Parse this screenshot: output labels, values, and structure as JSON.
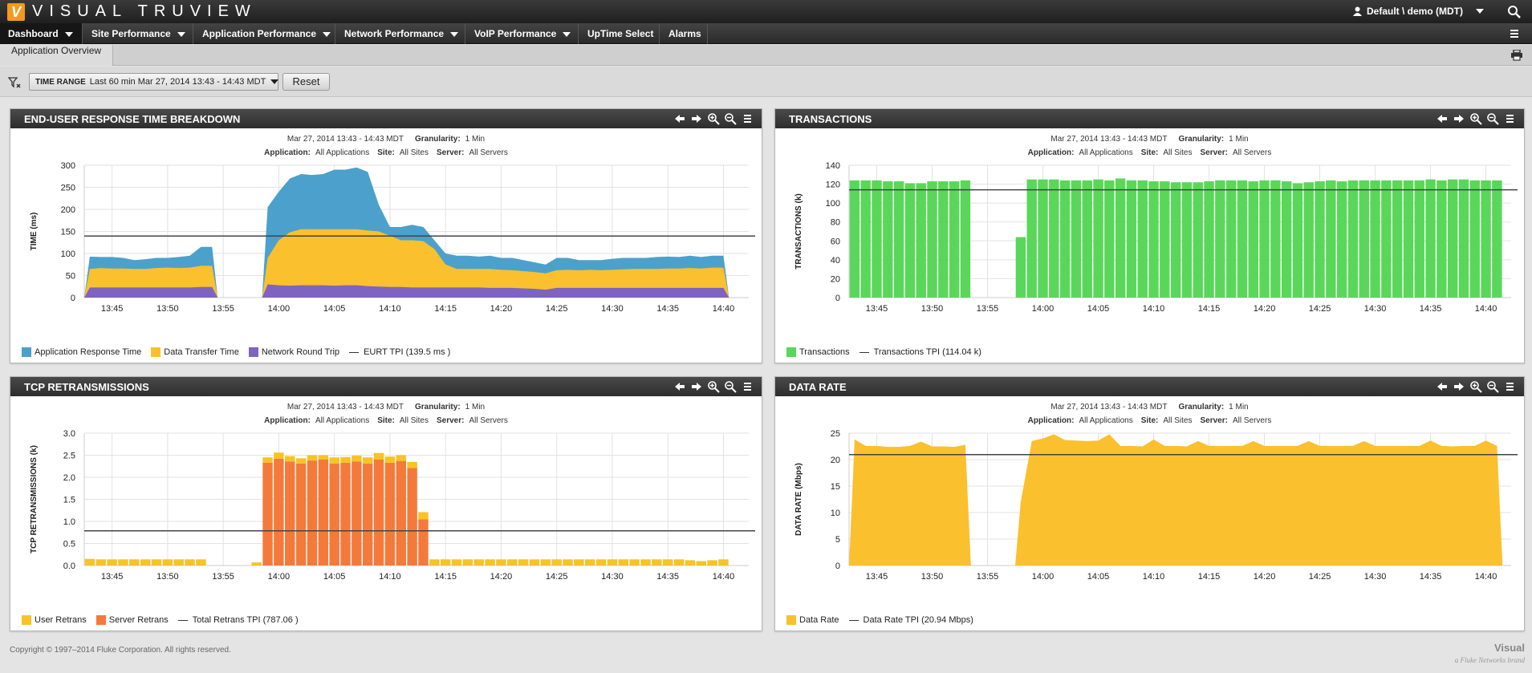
{
  "app": {
    "logo_letter": "V",
    "title": "VISUAL TRUVIEW",
    "user": "Default \\ demo (MDT)"
  },
  "nav": {
    "items": [
      {
        "label": "Dashboard",
        "dropdown": true,
        "active": true
      },
      {
        "label": "Site Performance",
        "dropdown": true
      },
      {
        "label": "Application Performance",
        "dropdown": true
      },
      {
        "label": "Network Performance",
        "dropdown": true
      },
      {
        "label": "VoIP Performance",
        "dropdown": true
      },
      {
        "label": "UpTime Select",
        "dropdown": false
      },
      {
        "label": "Alarms",
        "dropdown": false
      }
    ]
  },
  "breadcrumb": "Application Overview",
  "filter": {
    "time_range_label": "TIME RANGE",
    "time_range_value": "Last 60 min Mar 27, 2014 13:43 - 14:43 MDT",
    "reset_label": "Reset"
  },
  "meta_common": {
    "range": "Mar 27, 2014 13:43 - 14:43 MDT",
    "granularity_label": "Granularity:",
    "granularity": "1 Min",
    "application_label": "Application:",
    "application": "All Applications",
    "site_label": "Site:",
    "site": "All Sites",
    "server_label": "Server:",
    "server": "All Servers"
  },
  "colors": {
    "app_response": "#4ba1cb",
    "data_transfer": "#fbc02d",
    "network_round_trip": "#7e64c0",
    "transactions": "#5ad75a",
    "user_retrans": "#f7c325",
    "server_retrans": "#f47a3c",
    "data_rate": "#fbc02d",
    "threshold": "#444444"
  },
  "panels": {
    "eurt": {
      "title": "END-USER RESPONSE TIME BREAKDOWN"
    },
    "transactions": {
      "title": "TRANSACTIONS"
    },
    "tcp": {
      "title": "TCP RETRANSMISSIONS"
    },
    "datarate": {
      "title": "DATA RATE"
    }
  },
  "chart_data": [
    {
      "id": "eurt",
      "type": "area",
      "ylabel": "TIME (ms)",
      "ylim": [
        0,
        300
      ],
      "yticks": [
        "0",
        "50",
        "100",
        "150",
        "200",
        "250",
        "300"
      ],
      "xticks": [
        "13:45",
        "13:50",
        "13:55",
        "14:00",
        "14:05",
        "14:10",
        "14:15",
        "14:20",
        "14:25",
        "14:30",
        "14:35",
        "14:40"
      ],
      "x_start_min": 43,
      "threshold": 139.5,
      "series": [
        {
          "name": "Application Response Time",
          "values": [
            93,
            92,
            92,
            90,
            85,
            87,
            90,
            90,
            92,
            95,
            115,
            115,
            null,
            null,
            null,
            null,
            205,
            240,
            270,
            280,
            278,
            280,
            290,
            290,
            295,
            285,
            210,
            160,
            160,
            165,
            160,
            130,
            100,
            95,
            95,
            93,
            95,
            90,
            90,
            85,
            80,
            75,
            90,
            90,
            85,
            85,
            85,
            88,
            90,
            90,
            90,
            92,
            93,
            92,
            95,
            92,
            95,
            95
          ]
        },
        {
          "name": "Data Transfer Time",
          "values": [
            65,
            67,
            66,
            66,
            65,
            65,
            67,
            68,
            67,
            68,
            72,
            72,
            null,
            null,
            null,
            null,
            90,
            130,
            148,
            155,
            155,
            155,
            155,
            155,
            155,
            152,
            150,
            140,
            130,
            130,
            128,
            110,
            75,
            65,
            65,
            65,
            65,
            63,
            62,
            60,
            58,
            55,
            62,
            63,
            62,
            63,
            62,
            63,
            64,
            65,
            65,
            65,
            66,
            66,
            67,
            66,
            68,
            68
          ]
        },
        {
          "name": "Network Round Trip",
          "values": [
            23,
            23,
            23,
            23,
            23,
            23,
            23,
            23,
            23,
            23,
            24,
            24,
            null,
            null,
            null,
            null,
            30,
            28,
            27,
            28,
            28,
            28,
            27,
            28,
            28,
            26,
            25,
            24,
            24,
            23,
            23,
            23,
            23,
            23,
            23,
            23,
            22,
            22,
            22,
            21,
            20,
            18,
            22,
            22,
            22,
            22,
            22,
            22,
            22,
            22,
            22,
            22,
            22,
            22,
            22,
            22,
            22,
            22
          ]
        }
      ],
      "legend": [
        "Application Response Time",
        "Data Transfer Time",
        "Network Round Trip",
        "EURT TPI (139.5 ms )"
      ]
    },
    {
      "id": "transactions",
      "type": "bar",
      "ylabel": "TRANSACTIONS (k)",
      "ylim": [
        0,
        140
      ],
      "yticks": [
        "0",
        "20",
        "40",
        "60",
        "80",
        "100",
        "120",
        "140"
      ],
      "xticks": [
        "13:45",
        "13:50",
        "13:55",
        "14:00",
        "14:05",
        "14:10",
        "14:15",
        "14:20",
        "14:25",
        "14:30",
        "14:35",
        "14:40"
      ],
      "x_start_min": 43,
      "threshold": 114.04,
      "series": [
        {
          "name": "Transactions",
          "values": [
            124,
            124,
            124,
            123,
            123,
            121,
            121,
            123,
            123,
            123,
            124,
            null,
            null,
            null,
            null,
            64,
            125,
            125,
            125,
            124,
            124,
            124,
            125,
            124,
            126,
            124,
            124,
            123,
            123,
            122,
            122,
            122,
            123,
            124,
            124,
            124,
            123,
            124,
            124,
            123,
            121,
            122,
            123,
            124,
            123,
            124,
            124,
            124,
            124,
            124,
            124,
            124,
            125,
            124,
            125,
            125,
            124,
            124,
            124
          ]
        }
      ],
      "legend": [
        "Transactions",
        "Transactions TPI (114.04 k)"
      ]
    },
    {
      "id": "tcp",
      "type": "bar",
      "ylabel": "TCP RETRANSMISSIONS (k)",
      "ylim": [
        0,
        3.0
      ],
      "yticks": [
        "0.0",
        "0.5",
        "1.0",
        "1.5",
        "2.0",
        "2.5",
        "3.0"
      ],
      "xticks": [
        "13:45",
        "13:50",
        "13:55",
        "14:00",
        "14:05",
        "14:10",
        "14:15",
        "14:20",
        "14:25",
        "14:30",
        "14:35",
        "14:40"
      ],
      "x_start_min": 43,
      "threshold": 0.787,
      "series": [
        {
          "name": "Server Retrans",
          "values": [
            0,
            0,
            0,
            0,
            0,
            0,
            0,
            0,
            0,
            0,
            0,
            null,
            null,
            null,
            null,
            0,
            2.33,
            2.42,
            2.36,
            2.31,
            2.38,
            2.4,
            2.31,
            2.33,
            2.36,
            2.31,
            2.4,
            2.33,
            2.37,
            2.21,
            1.05,
            0,
            0,
            0,
            0,
            0,
            0,
            0,
            0,
            0,
            0,
            0,
            0,
            0,
            0,
            0,
            0,
            0,
            0,
            0,
            0,
            0,
            0,
            0,
            0,
            0,
            0,
            0
          ]
        },
        {
          "name": "User Retrans",
          "values": [
            0.15,
            0.14,
            0.14,
            0.14,
            0.14,
            0.14,
            0.14,
            0.14,
            0.14,
            0.14,
            0.14,
            null,
            null,
            null,
            null,
            0.07,
            0.12,
            0.14,
            0.12,
            0.12,
            0.12,
            0.1,
            0.14,
            0.13,
            0.13,
            0.14,
            0.15,
            0.14,
            0.13,
            0.14,
            0.16,
            0.14,
            0.14,
            0.14,
            0.14,
            0.14,
            0.14,
            0.14,
            0.14,
            0.14,
            0.14,
            0.14,
            0.14,
            0.14,
            0.14,
            0.14,
            0.14,
            0.14,
            0.14,
            0.14,
            0.14,
            0.14,
            0.14,
            0.14,
            0.12,
            0.1,
            0.12,
            0.14
          ]
        }
      ],
      "legend": [
        "User Retrans",
        "Server Retrans",
        "Total Retrans TPI (787.06 )"
      ]
    },
    {
      "id": "datarate",
      "type": "area",
      "ylabel": "DATA RATE (Mbps)",
      "ylim": [
        0,
        25
      ],
      "yticks": [
        "0",
        "5",
        "10",
        "15",
        "20",
        "25"
      ],
      "xticks": [
        "13:45",
        "13:50",
        "13:55",
        "14:00",
        "14:05",
        "14:10",
        "14:15",
        "14:20",
        "14:25",
        "14:30",
        "14:35",
        "14:40"
      ],
      "x_start_min": 43,
      "threshold": 20.94,
      "series": [
        {
          "name": "Data Rate",
          "values": [
            23.8,
            22.6,
            22.6,
            22.4,
            22.4,
            22.6,
            23.4,
            22.5,
            22.5,
            22.4,
            22.8,
            null,
            null,
            null,
            null,
            12.0,
            23.5,
            24.0,
            24.8,
            23.7,
            23.6,
            23.5,
            23.6,
            24.8,
            22.6,
            22.6,
            22.5,
            23.8,
            22.6,
            22.6,
            22.5,
            23.5,
            22.6,
            22.6,
            22.6,
            22.6,
            23.5,
            22.6,
            22.6,
            22.6,
            22.6,
            23.5,
            22.6,
            22.6,
            22.6,
            22.6,
            23.5,
            22.6,
            22.6,
            22.6,
            22.6,
            22.6,
            23.6,
            22.6,
            22.5,
            22.6,
            22.6,
            23.6,
            22.6
          ]
        }
      ],
      "legend": [
        "Data Rate",
        "Data Rate TPI (20.94 Mbps)"
      ]
    }
  ],
  "footer": {
    "copyright": "Copyright © 1997–2014 Fluke Corporation. All rights reserved.",
    "brand": "Visual",
    "brand_sub": "a Fluke Networks brand"
  }
}
